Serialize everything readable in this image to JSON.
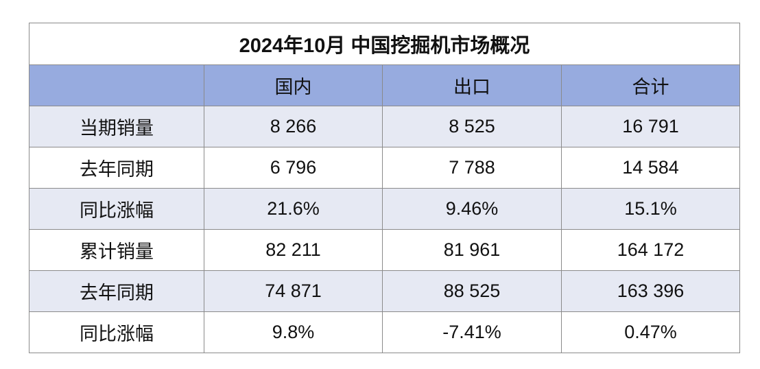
{
  "table": {
    "title": "2024年10月 中国挖掘机市场概况",
    "columns": [
      "国内",
      "出口",
      "合计"
    ],
    "rows": [
      {
        "label": "当期销量",
        "cells": [
          "8 266",
          "8 525",
          "16 791"
        ]
      },
      {
        "label": "去年同期",
        "cells": [
          "6 796",
          "7 788",
          "14 584"
        ]
      },
      {
        "label": "同比涨幅",
        "cells": [
          "21.6%",
          "9.46%",
          "15.1%"
        ]
      },
      {
        "label": "累计销量",
        "cells": [
          "82 211",
          "81 961",
          "164 172"
        ]
      },
      {
        "label": "去年同期",
        "cells": [
          "74 871",
          "88 525",
          "163 396"
        ]
      },
      {
        "label": "同比涨幅",
        "cells": [
          "9.8%",
          "-7.41%",
          "0.47%"
        ]
      }
    ]
  }
}
